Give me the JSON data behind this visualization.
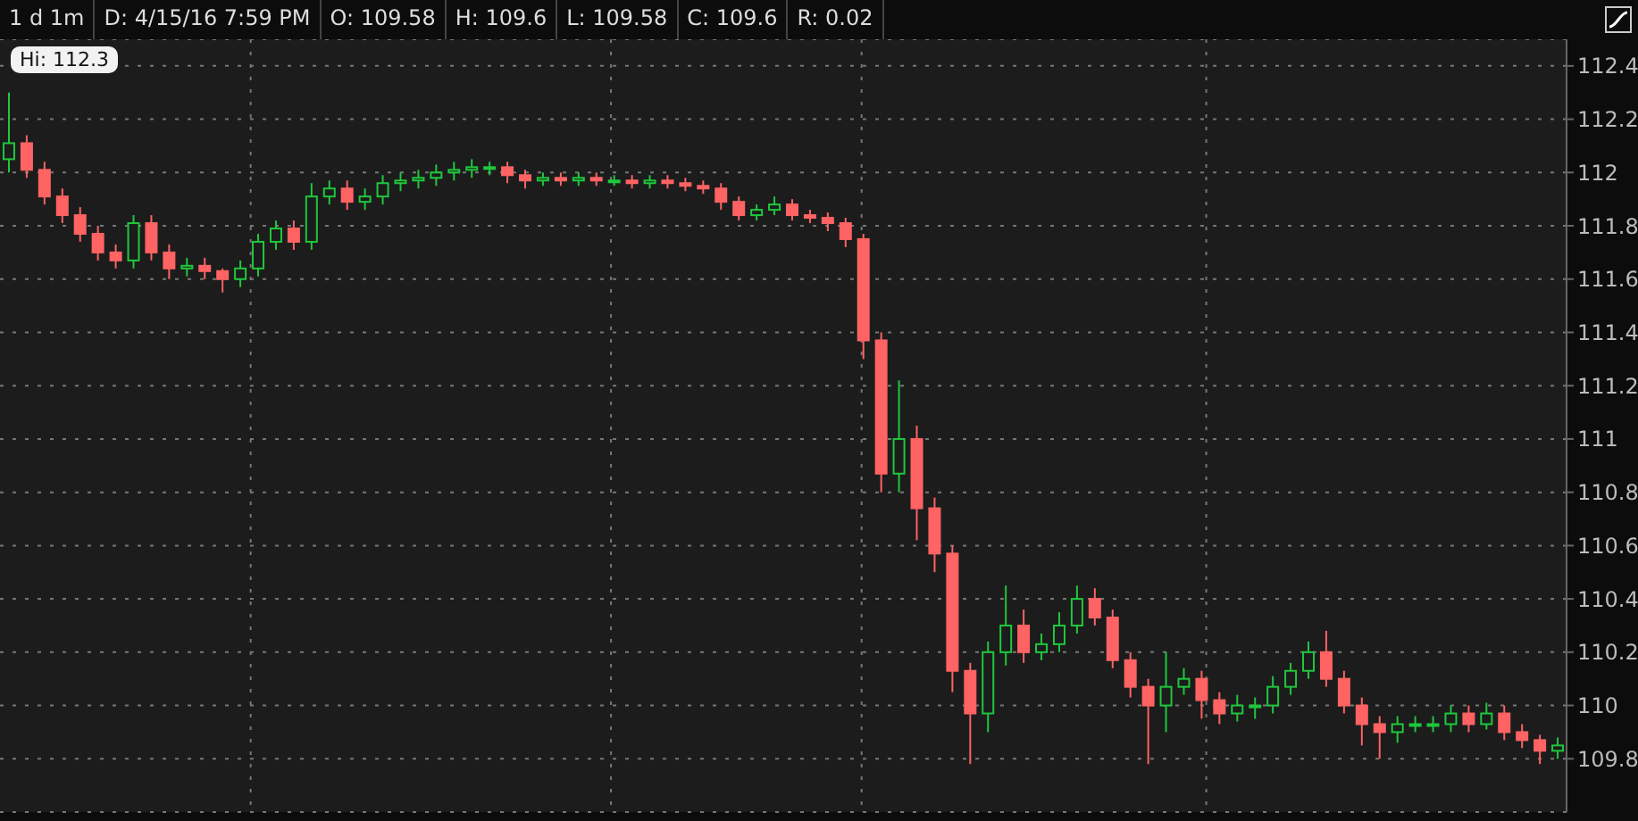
{
  "chart_data": {
    "type": "candlestick",
    "title": "1 d 1m",
    "annotations": [
      "D: 4/15/16 7:59 PM",
      "O: 109.58",
      "H: 109.6",
      "L: 109.58",
      "C: 109.6",
      "R: 0.02",
      "Hi: 112.3"
    ],
    "categories": [
      null,
      null,
      null,
      null,
      null,
      null,
      null,
      null,
      null,
      null,
      null,
      null,
      null,
      null,
      null,
      null,
      null,
      null,
      null,
      null,
      null,
      null,
      null,
      null,
      null,
      null,
      null,
      null,
      null,
      null,
      null,
      null,
      null,
      null,
      null,
      null,
      null,
      null,
      null,
      null,
      null,
      null,
      null,
      null,
      null,
      null,
      null,
      null,
      null,
      null,
      null,
      null,
      null,
      null,
      null,
      null,
      null,
      null,
      null,
      null,
      null,
      null,
      null,
      null,
      null,
      null,
      null,
      null,
      null,
      null,
      null,
      null,
      null,
      null,
      null,
      null,
      null,
      null,
      null,
      null,
      null,
      null,
      null,
      null,
      null,
      null,
      null,
      null
    ],
    "ohlc": [
      [
        112.05,
        112.3,
        112.0,
        112.11
      ],
      [
        112.11,
        112.14,
        111.98,
        112.01
      ],
      [
        112.01,
        112.04,
        111.88,
        111.91
      ],
      [
        111.91,
        111.94,
        111.81,
        111.84
      ],
      [
        111.84,
        111.87,
        111.74,
        111.77
      ],
      [
        111.77,
        111.8,
        111.67,
        111.7
      ],
      [
        111.7,
        111.73,
        111.64,
        111.67
      ],
      [
        111.67,
        111.84,
        111.64,
        111.81
      ],
      [
        111.81,
        111.84,
        111.67,
        111.7
      ],
      [
        111.7,
        111.73,
        111.6,
        111.64
      ],
      [
        111.64,
        111.68,
        111.61,
        111.65
      ],
      [
        111.65,
        111.68,
        111.6,
        111.63
      ],
      [
        111.63,
        111.64,
        111.55,
        111.6
      ],
      [
        111.6,
        111.67,
        111.57,
        111.64
      ],
      [
        111.64,
        111.77,
        111.61,
        111.74
      ],
      [
        111.74,
        111.82,
        111.71,
        111.79
      ],
      [
        111.79,
        111.82,
        111.71,
        111.74
      ],
      [
        111.74,
        111.96,
        111.71,
        111.91
      ],
      [
        111.91,
        111.97,
        111.88,
        111.94
      ],
      [
        111.94,
        111.97,
        111.86,
        111.89
      ],
      [
        111.89,
        111.94,
        111.86,
        111.91
      ],
      [
        111.91,
        111.99,
        111.88,
        111.96
      ],
      [
        111.96,
        112.0,
        111.93,
        111.97
      ],
      [
        111.97,
        112.01,
        111.94,
        111.98
      ],
      [
        111.98,
        112.03,
        111.95,
        112.0
      ],
      [
        112.0,
        112.04,
        111.97,
        112.01
      ],
      [
        112.01,
        112.05,
        111.98,
        112.02
      ],
      [
        112.02,
        112.04,
        111.99,
        112.02
      ],
      [
        112.02,
        112.04,
        111.96,
        111.99
      ],
      [
        111.99,
        112.01,
        111.94,
        111.97
      ],
      [
        111.97,
        112.0,
        111.95,
        111.98
      ],
      [
        111.98,
        112.0,
        111.95,
        111.97
      ],
      [
        111.97,
        112.0,
        111.95,
        111.98
      ],
      [
        111.98,
        112.0,
        111.95,
        111.97
      ],
      [
        111.97,
        111.99,
        111.95,
        111.97
      ],
      [
        111.97,
        111.99,
        111.94,
        111.96
      ],
      [
        111.96,
        111.99,
        111.94,
        111.97
      ],
      [
        111.97,
        111.99,
        111.94,
        111.96
      ],
      [
        111.96,
        111.98,
        111.93,
        111.95
      ],
      [
        111.95,
        111.97,
        111.92,
        111.94
      ],
      [
        111.94,
        111.96,
        111.86,
        111.89
      ],
      [
        111.89,
        111.91,
        111.82,
        111.84
      ],
      [
        111.84,
        111.88,
        111.82,
        111.86
      ],
      [
        111.86,
        111.91,
        111.84,
        111.88
      ],
      [
        111.88,
        111.9,
        111.82,
        111.84
      ],
      [
        111.84,
        111.86,
        111.81,
        111.83
      ],
      [
        111.83,
        111.85,
        111.78,
        111.81
      ],
      [
        111.81,
        111.83,
        111.72,
        111.75
      ],
      [
        111.75,
        111.77,
        111.3,
        111.37
      ],
      [
        111.37,
        111.4,
        110.8,
        110.87
      ],
      [
        110.87,
        111.22,
        110.8,
        111.0
      ],
      [
        111.0,
        111.05,
        110.62,
        110.74
      ],
      [
        110.74,
        110.78,
        110.5,
        110.57
      ],
      [
        110.57,
        110.6,
        110.05,
        110.13
      ],
      [
        110.13,
        110.16,
        109.78,
        109.97
      ],
      [
        109.97,
        110.24,
        109.9,
        110.2
      ],
      [
        110.2,
        110.45,
        110.15,
        110.3
      ],
      [
        110.3,
        110.36,
        110.16,
        110.2
      ],
      [
        110.2,
        110.27,
        110.17,
        110.23
      ],
      [
        110.23,
        110.35,
        110.2,
        110.3
      ],
      [
        110.3,
        110.45,
        110.27,
        110.4
      ],
      [
        110.4,
        110.44,
        110.3,
        110.33
      ],
      [
        110.33,
        110.36,
        110.14,
        110.17
      ],
      [
        110.17,
        110.2,
        110.03,
        110.07
      ],
      [
        110.07,
        110.1,
        109.78,
        110.0
      ],
      [
        110.0,
        110.2,
        109.9,
        110.07
      ],
      [
        110.07,
        110.14,
        110.04,
        110.1
      ],
      [
        110.1,
        110.13,
        109.95,
        110.02
      ],
      [
        110.02,
        110.05,
        109.93,
        109.97
      ],
      [
        109.97,
        110.04,
        109.94,
        110.0
      ],
      [
        110.0,
        110.03,
        109.95,
        110.0
      ],
      [
        110.0,
        110.11,
        109.97,
        110.07
      ],
      [
        110.07,
        110.16,
        110.04,
        110.13
      ],
      [
        110.13,
        110.24,
        110.1,
        110.2
      ],
      [
        110.2,
        110.28,
        110.07,
        110.1
      ],
      [
        110.1,
        110.13,
        109.97,
        110.0
      ],
      [
        110.0,
        110.03,
        109.85,
        109.93
      ],
      [
        109.93,
        109.96,
        109.8,
        109.9
      ],
      [
        109.9,
        109.96,
        109.86,
        109.93
      ],
      [
        109.93,
        109.96,
        109.9,
        109.93
      ],
      [
        109.93,
        109.96,
        109.9,
        109.93
      ],
      [
        109.93,
        110.0,
        109.9,
        109.97
      ],
      [
        109.97,
        110.0,
        109.9,
        109.93
      ],
      [
        109.93,
        110.01,
        109.91,
        109.97
      ],
      [
        109.97,
        110.0,
        109.87,
        109.9
      ],
      [
        109.9,
        109.93,
        109.84,
        109.87
      ],
      [
        109.87,
        109.89,
        109.78,
        109.83
      ],
      [
        109.83,
        109.88,
        109.8,
        109.85
      ]
    ],
    "colors": [
      "#1fc83c",
      "#ff6363",
      "#ff6363",
      "#ff6363",
      "#ff6363",
      "#ff6363",
      "#ff6363",
      "#1fc83c",
      "#ff6363",
      "#ff6363",
      "#1fc83c",
      "#ff6363",
      "#ff6363",
      "#1fc83c",
      "#1fc83c",
      "#1fc83c",
      "#ff6363",
      "#1fc83c",
      "#1fc83c",
      "#ff6363",
      "#1fc83c",
      "#1fc83c",
      "#1fc83c",
      "#1fc83c",
      "#1fc83c",
      "#1fc83c",
      "#1fc83c",
      "#1fc83c",
      "#ff6363",
      "#ff6363",
      "#1fc83c",
      "#ff6363",
      "#1fc83c",
      "#ff6363",
      "#1fc83c",
      "#ff6363",
      "#1fc83c",
      "#ff6363",
      "#ff6363",
      "#ff6363",
      "#ff6363",
      "#ff6363",
      "#1fc83c",
      "#1fc83c",
      "#ff6363",
      "#ff6363",
      "#ff6363",
      "#ff6363",
      "#ff6363",
      "#ff6363",
      "#1fc83c",
      "#ff6363",
      "#ff6363",
      "#ff6363",
      "#ff6363",
      "#1fc83c",
      "#1fc83c",
      "#ff6363",
      "#1fc83c",
      "#1fc83c",
      "#1fc83c",
      "#ff6363",
      "#ff6363",
      "#ff6363",
      "#ff6363",
      "#1fc83c",
      "#1fc83c",
      "#ff6363",
      "#ff6363",
      "#1fc83c",
      "#1fc83c",
      "#1fc83c",
      "#1fc83c",
      "#1fc83c",
      "#ff6363",
      "#ff6363",
      "#ff6363",
      "#ff6363",
      "#1fc83c",
      "#1fc83c",
      "#1fc83c",
      "#1fc83c",
      "#ff6363",
      "#1fc83c",
      "#ff6363",
      "#ff6363",
      "#ff6363",
      "#1fc83c"
    ],
    "ylim": [
      109.6,
      112.5
    ],
    "yticks": [
      109.8,
      110,
      110.2,
      110.4,
      110.6,
      110.8,
      111,
      111.2,
      111.4,
      111.6,
      111.8,
      112,
      112.2,
      112.4
    ],
    "grid": true,
    "legend": false
  }
}
